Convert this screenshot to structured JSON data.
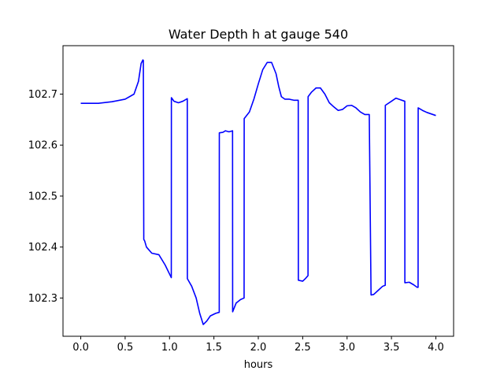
{
  "chart_data": {
    "type": "line",
    "title": "Water Depth h at gauge 540",
    "xlabel": "hours",
    "ylabel": "",
    "xlim": [
      -0.2,
      4.2
    ],
    "ylim": [
      102.225,
      102.795
    ],
    "xticks": [
      0.0,
      0.5,
      1.0,
      1.5,
      2.0,
      2.5,
      3.0,
      3.5,
      4.0
    ],
    "xtick_labels": [
      "0.0",
      "0.5",
      "1.0",
      "1.5",
      "2.0",
      "2.5",
      "3.0",
      "3.5",
      "4.0"
    ],
    "yticks": [
      102.3,
      102.4,
      102.5,
      102.6,
      102.7
    ],
    "ytick_labels": [
      "102.3",
      "102.4",
      "102.5",
      "102.6",
      "102.7"
    ],
    "grid": false,
    "series": [
      {
        "color": "#0000ff",
        "x": [
          0.0,
          0.2,
          0.35,
          0.5,
          0.6,
          0.65,
          0.68,
          0.7,
          0.705,
          0.71,
          0.72,
          0.74,
          0.8,
          0.88,
          0.95,
          1.02,
          1.021,
          1.05,
          1.1,
          1.15,
          1.2,
          1.201,
          1.25,
          1.3,
          1.34,
          1.38,
          1.42,
          1.46,
          1.52,
          1.56,
          1.561,
          1.6,
          1.63,
          1.67,
          1.71,
          1.711,
          1.75,
          1.8,
          1.84,
          1.841,
          1.9,
          1.95,
          2.0,
          2.05,
          2.1,
          2.15,
          2.2,
          2.23,
          2.26,
          2.3,
          2.35,
          2.4,
          2.45,
          2.451,
          2.5,
          2.53,
          2.56,
          2.561,
          2.6,
          2.65,
          2.7,
          2.75,
          2.8,
          2.85,
          2.9,
          2.95,
          3.0,
          3.05,
          3.1,
          3.15,
          3.2,
          3.25,
          3.27,
          3.271,
          3.3,
          3.35,
          3.4,
          3.43,
          3.431,
          3.5,
          3.55,
          3.6,
          3.65,
          3.651,
          3.7,
          3.75,
          3.79,
          3.8,
          3.801,
          3.85,
          3.9,
          4.0
        ],
        "y": [
          102.682,
          102.682,
          102.685,
          102.69,
          102.7,
          102.725,
          102.76,
          102.767,
          102.766,
          102.415,
          102.412,
          102.4,
          102.388,
          102.385,
          102.365,
          102.34,
          102.693,
          102.686,
          102.683,
          102.686,
          102.691,
          102.338,
          102.323,
          102.3,
          102.27,
          102.248,
          102.255,
          102.265,
          102.27,
          102.272,
          102.624,
          102.625,
          102.628,
          102.626,
          102.628,
          102.273,
          102.29,
          102.297,
          102.3,
          102.652,
          102.665,
          102.69,
          102.72,
          102.748,
          102.762,
          102.762,
          102.74,
          102.715,
          102.695,
          102.69,
          102.69,
          102.688,
          102.688,
          102.335,
          102.333,
          102.338,
          102.344,
          102.695,
          102.704,
          102.712,
          102.712,
          102.7,
          102.683,
          102.675,
          102.668,
          102.67,
          102.677,
          102.678,
          102.673,
          102.665,
          102.66,
          102.66,
          102.307,
          102.306,
          102.307,
          102.315,
          102.323,
          102.325,
          102.678,
          102.686,
          102.692,
          102.689,
          102.686,
          102.33,
          102.331,
          102.326,
          102.321,
          102.321,
          102.673,
          102.668,
          102.664,
          102.658
        ]
      }
    ]
  }
}
